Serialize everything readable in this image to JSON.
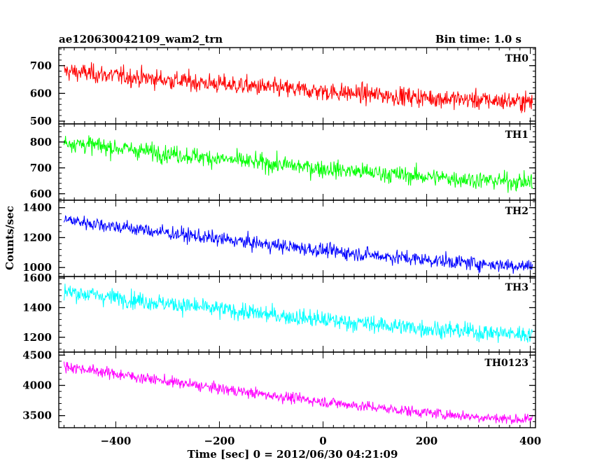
{
  "header": {
    "title": "ae120630042109_wam2_trn",
    "bin_time": "Bin time: 1.0 s"
  },
  "chart_data": {
    "type": "line",
    "xlabel": "Time [sec] 0 = 2012/06/30 04:21:09",
    "ylabel": "Counts/sec",
    "xlim": [
      -510,
      410
    ],
    "xticks": [
      -400,
      -200,
      0,
      200,
      400
    ],
    "xtick_labels": [
      "−400",
      "−200",
      "0",
      "200",
      "400"
    ],
    "bin_time_s": 1.0,
    "panels": [
      {
        "name": "TH0",
        "color": "#ff0000",
        "ylim": [
          490,
          765
        ],
        "yticks": [
          500,
          600,
          700
        ],
        "ytick_labels": [
          "500",
          "600",
          "700"
        ],
        "start_mean": 680,
        "end_mean": 570,
        "noise": 32,
        "anchor_values": [
          {
            "x": -500,
            "y": 680
          },
          {
            "x": 0,
            "y": 605
          },
          {
            "x": 400,
            "y": 570
          }
        ]
      },
      {
        "name": "TH1",
        "color": "#00ff00",
        "ylim": [
          575,
          870
        ],
        "yticks": [
          600,
          700,
          800
        ],
        "ytick_labels": [
          "600",
          "700",
          "800"
        ],
        "start_mean": 800,
        "end_mean": 645,
        "noise": 32,
        "anchor_values": [
          {
            "x": -500,
            "y": 800
          },
          {
            "x": 0,
            "y": 705
          },
          {
            "x": 400,
            "y": 645
          }
        ]
      },
      {
        "name": "TH2",
        "color": "#0000ff",
        "ylim": [
          940,
          1450
        ],
        "yticks": [
          1000,
          1200,
          1400
        ],
        "ytick_labels": [
          "1000",
          "1200",
          "1400"
        ],
        "start_mean": 1320,
        "end_mean": 1010,
        "noise": 45,
        "anchor_values": [
          {
            "x": -500,
            "y": 1320
          },
          {
            "x": 0,
            "y": 1120
          },
          {
            "x": 400,
            "y": 1010
          }
        ]
      },
      {
        "name": "TH3",
        "color": "#00ffff",
        "ylim": [
          1100,
          1610
        ],
        "yticks": [
          1200,
          1400,
          1600
        ],
        "ytick_labels": [
          "1200",
          "1400",
          "1600"
        ],
        "start_mean": 1510,
        "end_mean": 1220,
        "noise": 55,
        "anchor_values": [
          {
            "x": -500,
            "y": 1510
          },
          {
            "x": 0,
            "y": 1310
          },
          {
            "x": 400,
            "y": 1220
          }
        ]
      },
      {
        "name": "TH0123",
        "color": "#ff00ff",
        "ylim": [
          3300,
          4550
        ],
        "yticks": [
          3500,
          4000,
          4500
        ],
        "ytick_labels": [
          "3500",
          "4000",
          "4500"
        ],
        "start_mean": 4320,
        "end_mean": 3430,
        "noise": 85,
        "anchor_values": [
          {
            "x": -500,
            "y": 4320
          },
          {
            "x": 0,
            "y": 3700
          },
          {
            "x": 400,
            "y": 3430
          }
        ]
      }
    ]
  }
}
